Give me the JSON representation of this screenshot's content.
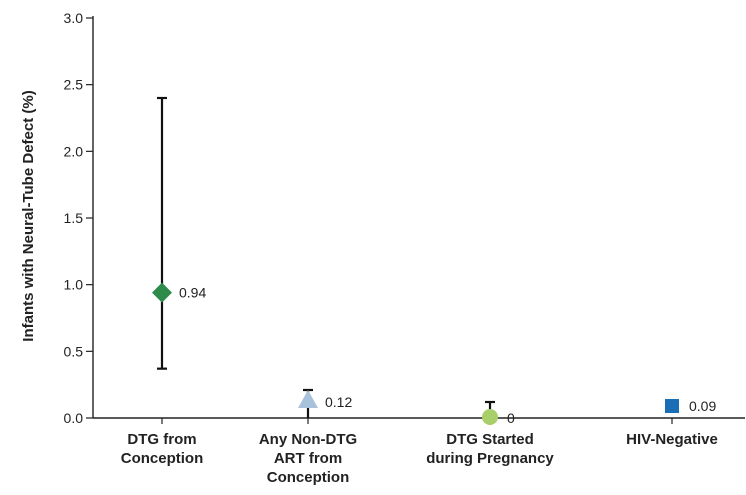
{
  "chart_data": {
    "type": "scatter",
    "ylabel": "Infants with Neural-Tube Defect (%)",
    "xlabel": "",
    "ylim": [
      0,
      3.0
    ],
    "yticks": [
      "0.0",
      "0.5",
      "1.0",
      "1.5",
      "2.0",
      "2.5",
      "3.0"
    ],
    "grid": false,
    "points": [
      {
        "category": [
          "DTG from",
          "Conception"
        ],
        "value": 0.94,
        "value_label": "0.94",
        "ci_low": 0.37,
        "ci_high": 2.4,
        "marker": "diamond",
        "color": "#2e8b4a"
      },
      {
        "category": [
          "Any Non-DTG",
          "ART from",
          "Conception"
        ],
        "value": 0.12,
        "value_label": "0.12",
        "ci_low": 0.0,
        "ci_high": 0.21,
        "marker": "triangle",
        "color": "#a6c3db"
      },
      {
        "category": [
          "DTG Started",
          "during Pregnancy"
        ],
        "value": 0,
        "value_label": "0",
        "ci_low": 0.0,
        "ci_high": 0.12,
        "marker": "circle",
        "color": "#a9cf6a"
      },
      {
        "category": [
          "HIV-Negative"
        ],
        "value": 0.09,
        "value_label": "0.09",
        "ci_low": null,
        "ci_high": null,
        "marker": "square",
        "color": "#1a6eb5"
      }
    ]
  }
}
